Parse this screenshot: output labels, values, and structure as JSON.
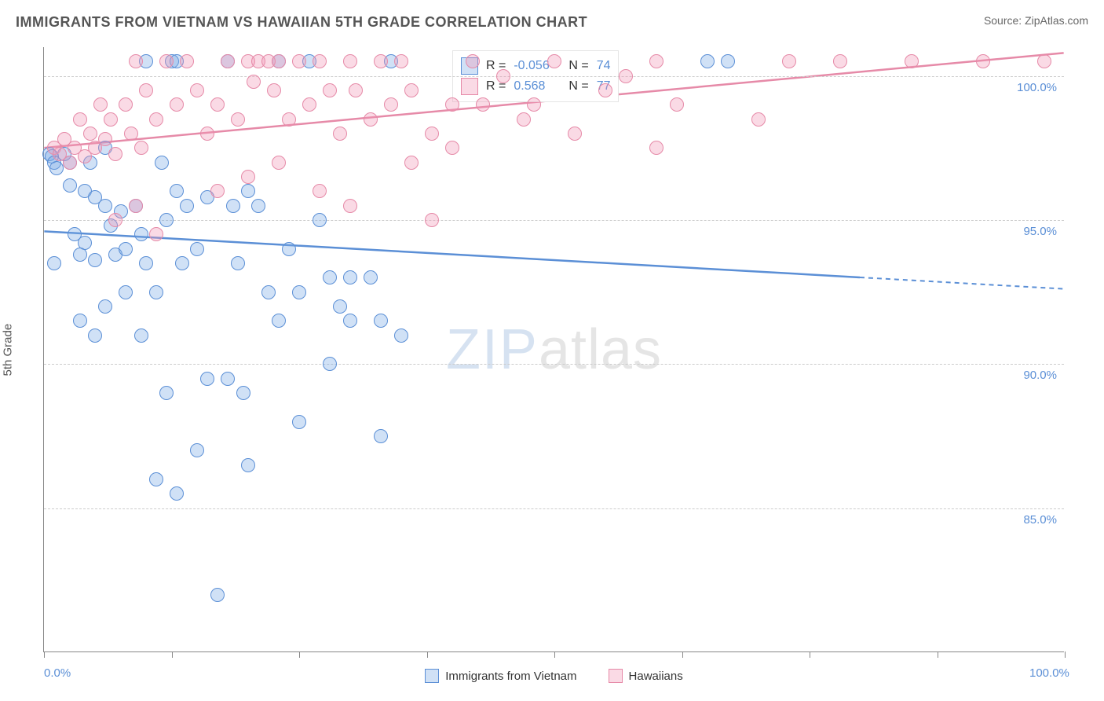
{
  "title": "IMMIGRANTS FROM VIETNAM VS HAWAIIAN 5TH GRADE CORRELATION CHART",
  "source": "Source: ZipAtlas.com",
  "ylabel": "5th Grade",
  "chart": {
    "type": "scatter",
    "xlim": [
      0,
      100
    ],
    "ylim": [
      80,
      101
    ],
    "xtick_positions": [
      0,
      12.5,
      25,
      37.5,
      50,
      62.5,
      75,
      87.5,
      100
    ],
    "xtick_labels": {
      "0": "0.0%",
      "100": "100.0%"
    },
    "ytick_positions": [
      85,
      90,
      95,
      100
    ],
    "ytick_labels": {
      "85": "85.0%",
      "90": "90.0%",
      "95": "95.0%",
      "100": "100.0%"
    },
    "grid_color": "#cccccc",
    "axis_color": "#888888",
    "background_color": "#ffffff",
    "tick_label_color": "#5b8fd6",
    "marker_radius": 9,
    "marker_stroke_width": 1.5,
    "series": [
      {
        "name": "Immigrants from Vietnam",
        "fill": "rgba(120,170,230,0.35)",
        "stroke": "#5b8fd6",
        "R": "-0.056",
        "N": "74",
        "trend": {
          "y_at_x0": 94.6,
          "y_at_x100": 92.6,
          "solid_until_x": 80,
          "width": 2.5
        },
        "points": [
          [
            0.5,
            97.3
          ],
          [
            0.8,
            97.2
          ],
          [
            1.0,
            97.0
          ],
          [
            1.2,
            96.8
          ],
          [
            1.0,
            93.5
          ],
          [
            2.0,
            97.3
          ],
          [
            2.5,
            97.0
          ],
          [
            2.5,
            96.2
          ],
          [
            4.0,
            96.0
          ],
          [
            4.5,
            97.0
          ],
          [
            5.0,
            95.8
          ],
          [
            3.0,
            94.5
          ],
          [
            4.0,
            94.2
          ],
          [
            6.0,
            95.5
          ],
          [
            6.0,
            97.5
          ],
          [
            3.5,
            93.8
          ],
          [
            5.0,
            93.6
          ],
          [
            6.5,
            94.8
          ],
          [
            7.0,
            93.8
          ],
          [
            7.5,
            95.3
          ],
          [
            8.0,
            94.0
          ],
          [
            9.0,
            95.5
          ],
          [
            9.5,
            94.5
          ],
          [
            10.0,
            93.5
          ],
          [
            3.5,
            91.5
          ],
          [
            5.0,
            91.0
          ],
          [
            6.0,
            92.0
          ],
          [
            8.0,
            92.5
          ],
          [
            9.5,
            91.0
          ],
          [
            11.0,
            92.5
          ],
          [
            11.5,
            97.0
          ],
          [
            12.0,
            95.0
          ],
          [
            13.0,
            96.0
          ],
          [
            14.0,
            95.5
          ],
          [
            13.5,
            93.5
          ],
          [
            15.0,
            94.0
          ],
          [
            16.0,
            95.8
          ],
          [
            10.0,
            100.5
          ],
          [
            12.5,
            100.5
          ],
          [
            13.0,
            100.5
          ],
          [
            18.0,
            100.5
          ],
          [
            18.5,
            95.5
          ],
          [
            20.0,
            96.0
          ],
          [
            19.0,
            93.5
          ],
          [
            21.0,
            95.5
          ],
          [
            23.0,
            100.5
          ],
          [
            22.0,
            92.5
          ],
          [
            24.0,
            94.0
          ],
          [
            25.0,
            92.5
          ],
          [
            26.0,
            100.5
          ],
          [
            27.0,
            95.0
          ],
          [
            28.0,
            93.0
          ],
          [
            29.0,
            92.0
          ],
          [
            30.0,
            93.0
          ],
          [
            32.0,
            93.0
          ],
          [
            33.0,
            91.5
          ],
          [
            34.0,
            100.5
          ],
          [
            11.0,
            86.0
          ],
          [
            12.0,
            89.0
          ],
          [
            13.0,
            85.5
          ],
          [
            15.0,
            87.0
          ],
          [
            16.0,
            89.5
          ],
          [
            18.0,
            89.5
          ],
          [
            19.5,
            89.0
          ],
          [
            20.0,
            86.5
          ],
          [
            23.0,
            91.5
          ],
          [
            25.0,
            88.0
          ],
          [
            28.0,
            90.0
          ],
          [
            30.0,
            91.5
          ],
          [
            33.0,
            87.5
          ],
          [
            35.0,
            91.0
          ],
          [
            17.0,
            82.0
          ],
          [
            65.0,
            100.5
          ],
          [
            67.0,
            100.5
          ]
        ]
      },
      {
        "name": "Hawaiians",
        "fill": "rgba(240,150,180,0.35)",
        "stroke": "#e68aa8",
        "R": "0.568",
        "N": "77",
        "trend": {
          "y_at_x0": 97.5,
          "y_at_x100": 100.8,
          "solid_until_x": 100,
          "width": 2.5
        },
        "points": [
          [
            1.0,
            97.5
          ],
          [
            1.5,
            97.3
          ],
          [
            2.0,
            97.8
          ],
          [
            2.5,
            97.0
          ],
          [
            3.0,
            97.5
          ],
          [
            3.5,
            98.5
          ],
          [
            4.0,
            97.2
          ],
          [
            4.5,
            98.0
          ],
          [
            5.0,
            97.5
          ],
          [
            5.5,
            99.0
          ],
          [
            6.0,
            97.8
          ],
          [
            6.5,
            98.5
          ],
          [
            7.0,
            97.3
          ],
          [
            8.0,
            99.0
          ],
          [
            8.5,
            98.0
          ],
          [
            9.0,
            100.5
          ],
          [
            9.5,
            97.5
          ],
          [
            10.0,
            99.5
          ],
          [
            11.0,
            98.5
          ],
          [
            12.0,
            100.5
          ],
          [
            7.0,
            95.0
          ],
          [
            9.0,
            95.5
          ],
          [
            11.0,
            94.5
          ],
          [
            13.0,
            99.0
          ],
          [
            14.0,
            100.5
          ],
          [
            15.0,
            99.5
          ],
          [
            16.0,
            98.0
          ],
          [
            17.0,
            99.0
          ],
          [
            18.0,
            100.5
          ],
          [
            19.0,
            98.5
          ],
          [
            20.0,
            100.5
          ],
          [
            20.5,
            99.8
          ],
          [
            21.0,
            100.5
          ],
          [
            22.0,
            100.5
          ],
          [
            22.5,
            99.5
          ],
          [
            23.0,
            100.5
          ],
          [
            24.0,
            98.5
          ],
          [
            25.0,
            100.5
          ],
          [
            26.0,
            99.0
          ],
          [
            27.0,
            100.5
          ],
          [
            28.0,
            99.5
          ],
          [
            29.0,
            98.0
          ],
          [
            30.0,
            100.5
          ],
          [
            30.5,
            99.5
          ],
          [
            17.0,
            96.0
          ],
          [
            20.0,
            96.5
          ],
          [
            23.0,
            97.0
          ],
          [
            27.0,
            96.0
          ],
          [
            30.0,
            95.5
          ],
          [
            32.0,
            98.5
          ],
          [
            33.0,
            100.5
          ],
          [
            34.0,
            99.0
          ],
          [
            35.0,
            100.5
          ],
          [
            36.0,
            99.5
          ],
          [
            38.0,
            98.0
          ],
          [
            40.0,
            99.0
          ],
          [
            42.0,
            100.5
          ],
          [
            43.0,
            99.0
          ],
          [
            36.0,
            97.0
          ],
          [
            40.0,
            97.5
          ],
          [
            38.0,
            95.0
          ],
          [
            45.0,
            100.0
          ],
          [
            47.0,
            98.5
          ],
          [
            48.0,
            99.0
          ],
          [
            50.0,
            100.5
          ],
          [
            52.0,
            98.0
          ],
          [
            55.0,
            99.5
          ],
          [
            57.0,
            100.0
          ],
          [
            60.0,
            100.5
          ],
          [
            60.0,
            97.5
          ],
          [
            62.0,
            99.0
          ],
          [
            70.0,
            98.5
          ],
          [
            73.0,
            100.5
          ],
          [
            78.0,
            100.5
          ],
          [
            85.0,
            100.5
          ],
          [
            92.0,
            100.5
          ],
          [
            98.0,
            100.5
          ]
        ]
      }
    ],
    "watermark": {
      "part1": "ZIP",
      "part2": "atlas"
    },
    "legend_stats": {
      "R_label": "R =",
      "N_label": "N ="
    }
  }
}
